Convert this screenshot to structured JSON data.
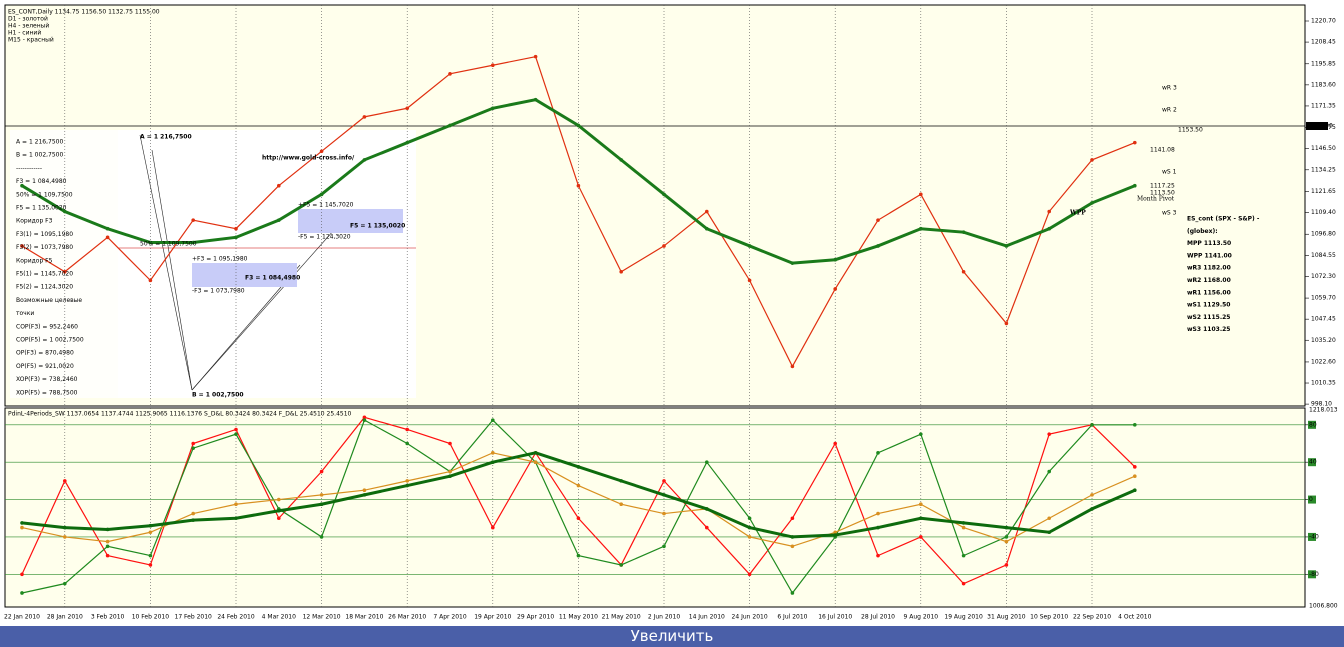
{
  "chart_data": [
    {
      "type": "line",
      "annotations": [
        "ES_CONT,Daily  1134.75 1156.50 1132.75 1155.00",
        "D1 - золотой",
        "H4 - зеленый",
        "H1 - синий",
        "M15 - красный",
        "A = 1 216,7500",
        "B = 1 002,7500",
        "------------",
        "F3 = 1 084,4980",
        "50% = 1 109,7500",
        "F5 = 1 135,0020",
        "Коридор F3",
        "F3(1) = 1095,1980",
        "F3(2) = 1073,7980",
        "Коридор F5",
        "F5(1) = 1145,7020",
        "F5(2) = 1124,3020",
        "Возможные целевые",
        "точки",
        "COP(F3) = 952,2460",
        "COP(F5) = 1 002,7500",
        "OP(F3) = 870,4980",
        "OP(F5) = 921,0020",
        "XOP(F3) = 738,2460",
        "XOP(F5) = 788,7500",
        "A = 1 216,7500",
        "http://www.gold-cross.info/",
        "50% = 1 109,7500",
        "+F5 = 1 145,7020",
        "-F5 = 1 124,3020",
        "F5 = 1 135,0020",
        "+F3 = 1 095,1980",
        "-F3 = 1 073,7980",
        "F3 = 1 084,4980",
        "B = 1 002,7500",
        "ES_cont (SPX - S&P) -",
        "(globex):",
        "MPP 1113.50",
        "WPP 1141.00",
        "wR3 1182.00",
        "wR2 1168.00",
        "wR1 1156.00",
        "wS1 1129.50",
        "wS2 1115.25",
        "wS3 1103.25",
        "wR 3",
        "wR 2",
        "wS 1",
        "wS 3",
        "Month Pivot",
        "WPP",
        "1153.50",
        "1141.08",
        "1117.25",
        "1113.50",
        "1155.00"
      ],
      "categories": [
        "22 Jan 2010",
        "28 Jan 2010",
        "3 Feb 2010",
        "10 Feb 2010",
        "17 Feb 2010",
        "24 Feb 2010",
        "4 Mar 2010",
        "12 Mar 2010",
        "18 Mar 2010",
        "26 Mar 2010",
        "7 Apr 2010",
        "19 Apr 2010",
        "29 Apr 2010",
        "11 May 2010",
        "21 May 2010",
        "2 Jun 2010",
        "14 Jun 2010",
        "24 Jun 2010",
        "6 Jul 2010",
        "16 Jul 2010",
        "28 Jul 2010",
        "9 Aug 2010",
        "19 Aug 2010",
        "31 Aug 2010",
        "10 Sep 2010",
        "22 Sep 2010",
        "4 Oct 2010"
      ],
      "series": [
        {
          "color": "#e03010",
          "values": [
            1090,
            1075,
            1095,
            1070,
            1105,
            1100,
            1125,
            1145,
            1165,
            1170,
            1190,
            1195,
            1200,
            1125,
            1075,
            1090,
            1110,
            1070,
            1020,
            1065,
            1105,
            1120,
            1075,
            1045,
            1110,
            1140,
            1150
          ]
        },
        {
          "color": "#1a7a1a",
          "values": [
            1125,
            1110,
            1100,
            1092,
            1092,
            1095,
            1105,
            1120,
            1140,
            1150,
            1160,
            1170,
            1175,
            1160,
            1140,
            1120,
            1100,
            1090,
            1080,
            1082,
            1090,
            1100,
            1098,
            1090,
            1100,
            1115,
            1125
          ]
        }
      ],
      "ylim": [
        997,
        1230
      ],
      "yticks": [
        {
          "value": 1220.7,
          "label": "1220.70"
        },
        {
          "value": 1208.45,
          "label": "1208.45"
        },
        {
          "value": 1195.85,
          "label": "1195.85"
        },
        {
          "value": 1183.6,
          "label": "1183.60"
        },
        {
          "value": 1171.35,
          "label": "1171.35"
        },
        {
          "value": 1158.75,
          "label": "1158.75"
        },
        {
          "value": 1146.5,
          "label": "1146.50"
        },
        {
          "value": 1134.25,
          "label": "1134.25"
        },
        {
          "value": 1121.65,
          "label": "1121.65"
        },
        {
          "value": 1109.4,
          "label": "1109.40"
        },
        {
          "value": 1096.8,
          "label": "1096.80"
        },
        {
          "value": 1084.55,
          "label": "1084.55"
        },
        {
          "value": 1072.3,
          "label": "1072.30"
        },
        {
          "value": 1059.7,
          "label": "1059.70"
        },
        {
          "value": 1047.45,
          "label": "1047.45"
        },
        {
          "value": 1035.2,
          "label": "1035.20"
        },
        {
          "value": 1022.6,
          "label": "1022.60"
        },
        {
          "value": 1010.35,
          "label": "1010.35"
        },
        {
          "value": 998.1,
          "label": "998.10"
        }
      ],
      "grid": false
    },
    {
      "type": "line",
      "annotations": [
        "PdinL-4Periods_SW 1137.0654 1137.4744 1125.9065 1116.1376  S_D&L 80.3424 80.3424  F_D&L 25.4510 25.4510",
        "1218.013",
        "1006.800"
      ],
      "series": [
        {
          "color": "#ff1010",
          "values": [
            -80,
            20,
            -60,
            -70,
            60,
            75,
            -20,
            30,
            88,
            75,
            60,
            -30,
            50,
            -20,
            -70,
            20,
            -30,
            -80,
            -20,
            60,
            -60,
            -40,
            -90,
            -70,
            70,
            80,
            35
          ]
        },
        {
          "color": "#1f8a1f",
          "values": [
            -100,
            -90,
            -50,
            -60,
            55,
            70,
            -10,
            -40,
            85,
            60,
            30,
            85,
            40,
            -60,
            -70,
            -50,
            40,
            -20,
            -100,
            -40,
            50,
            70,
            -60,
            -40,
            30,
            80,
            80
          ]
        },
        {
          "color": "#d89020",
          "values": [
            -30,
            -40,
            -45,
            -35,
            -15,
            -5,
            0,
            5,
            10,
            20,
            30,
            50,
            40,
            15,
            -5,
            -15,
            -10,
            -40,
            -50,
            -35,
            -15,
            -5,
            -30,
            -45,
            -20,
            5,
            25
          ]
        },
        {
          "color": "#0d6b0d",
          "values": [
            -25,
            -30,
            -32,
            -28,
            -22,
            -20,
            -12,
            -5,
            5,
            15,
            25,
            40,
            50,
            35,
            20,
            5,
            -10,
            -30,
            -40,
            -38,
            -30,
            -20,
            -25,
            -30,
            -35,
            -10,
            10
          ]
        }
      ],
      "ylim": [
        -115,
        98
      ],
      "yticks": [
        80,
        40,
        0,
        -40,
        -80
      ],
      "grid": true
    }
  ],
  "button": {
    "label": "Увеличить"
  }
}
